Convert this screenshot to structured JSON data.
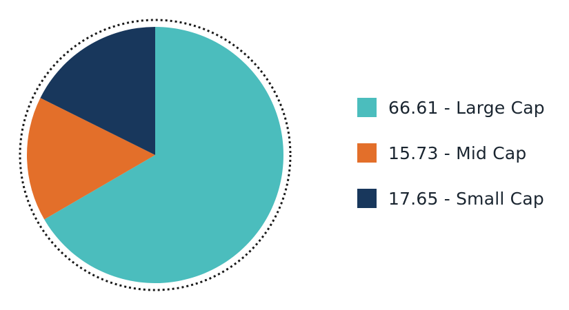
{
  "chart_data": {
    "type": "pie",
    "title": "",
    "start_angle_deg": 0,
    "direction": "clockwise",
    "outline": "dotted-circle",
    "legend_position": "right",
    "slices": [
      {
        "label": "66.61 - Large Cap",
        "category": "Large Cap",
        "value": 66.61,
        "color": "#4bbdbd"
      },
      {
        "label": "15.73 - Mid Cap",
        "category": "Mid Cap",
        "value": 15.73,
        "color": "#e36f2a"
      },
      {
        "label": "17.65 - Small Cap",
        "category": "Small Cap",
        "value": 17.65,
        "color": "#18375c"
      }
    ]
  }
}
